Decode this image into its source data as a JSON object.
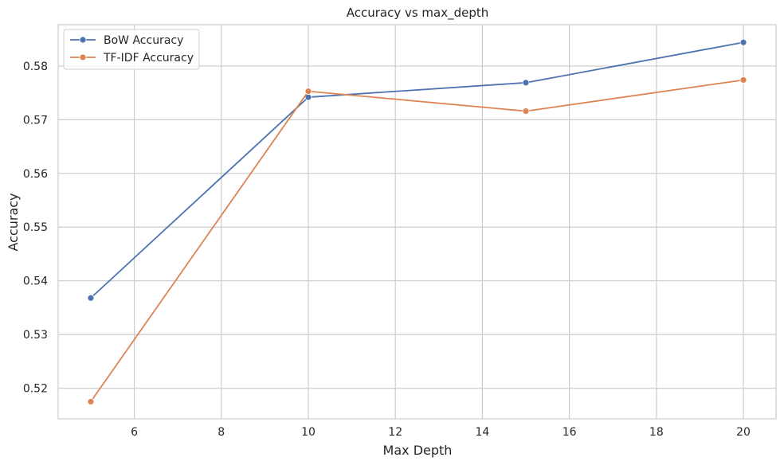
{
  "chart_data": {
    "type": "line",
    "title": "Accuracy vs max_depth",
    "xlabel": "Max Depth",
    "ylabel": "Accuracy",
    "x": [
      5,
      10,
      15,
      20
    ],
    "series": [
      {
        "name": "BoW Accuracy",
        "values": [
          0.5368,
          0.5742,
          0.5769,
          0.5844
        ],
        "color": "#4c72b0"
      },
      {
        "name": "TF-IDF Accuracy",
        "values": [
          0.5175,
          0.5753,
          0.5716,
          0.5774
        ],
        "color": "#dd8452"
      }
    ],
    "xlim": [
      4.25,
      20.75
    ],
    "ylim": [
      0.5143,
      0.5877
    ],
    "xticks": [
      6,
      8,
      10,
      12,
      14,
      16,
      18,
      20
    ],
    "yticks": [
      0.52,
      0.53,
      0.54,
      0.55,
      0.56,
      0.57,
      0.58
    ],
    "ytick_labels": [
      "0.52",
      "0.53",
      "0.54",
      "0.55",
      "0.56",
      "0.57",
      "0.58"
    ],
    "xtick_labels": [
      "6",
      "8",
      "10",
      "12",
      "14",
      "16",
      "18",
      "20"
    ],
    "grid": true,
    "legend_position": "top-left",
    "grid_color": "#cccccc",
    "axes_edge_color": "#cccccc",
    "text_color": "#262626"
  }
}
